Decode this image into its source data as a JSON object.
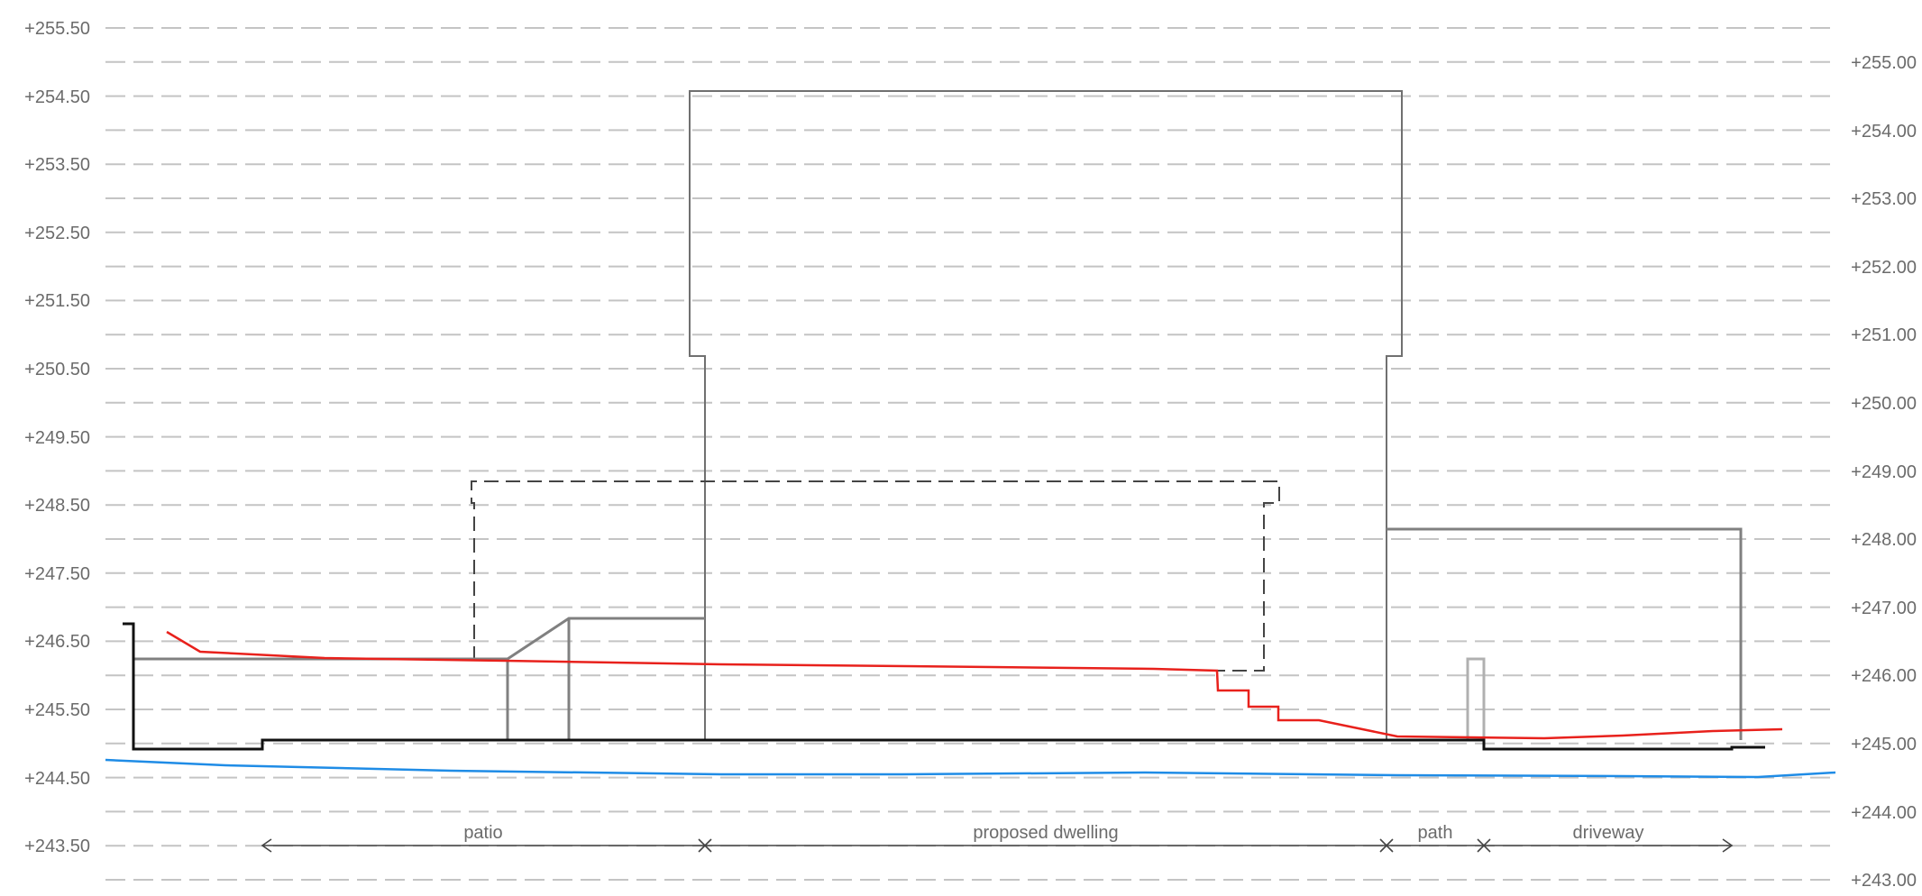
{
  "levels_left": [
    "+255.50",
    "+254.50",
    "+253.50",
    "+252.50",
    "+251.50",
    "+250.50",
    "+249.50",
    "+248.50",
    "+247.50",
    "+246.50",
    "+245.50",
    "+244.50",
    "+243.50"
  ],
  "levels_right": [
    "+255.00",
    "+254.00",
    "+253.00",
    "+252.00",
    "+251.00",
    "+250.00",
    "+249.00",
    "+248.00",
    "+247.00",
    "+246.00",
    "+245.00",
    "+244.00",
    "+243.00"
  ],
  "zones": {
    "patio": "patio",
    "dwelling": "proposed dwelling",
    "path": "path",
    "driveway": "driveway"
  },
  "colors": {
    "grid": "#c4c4c4",
    "outline": "#707070",
    "ground_line": "#111111",
    "existing_ground": "#e8211c",
    "water_line": "#1f8ce6",
    "text": "#6b6b6b"
  }
}
